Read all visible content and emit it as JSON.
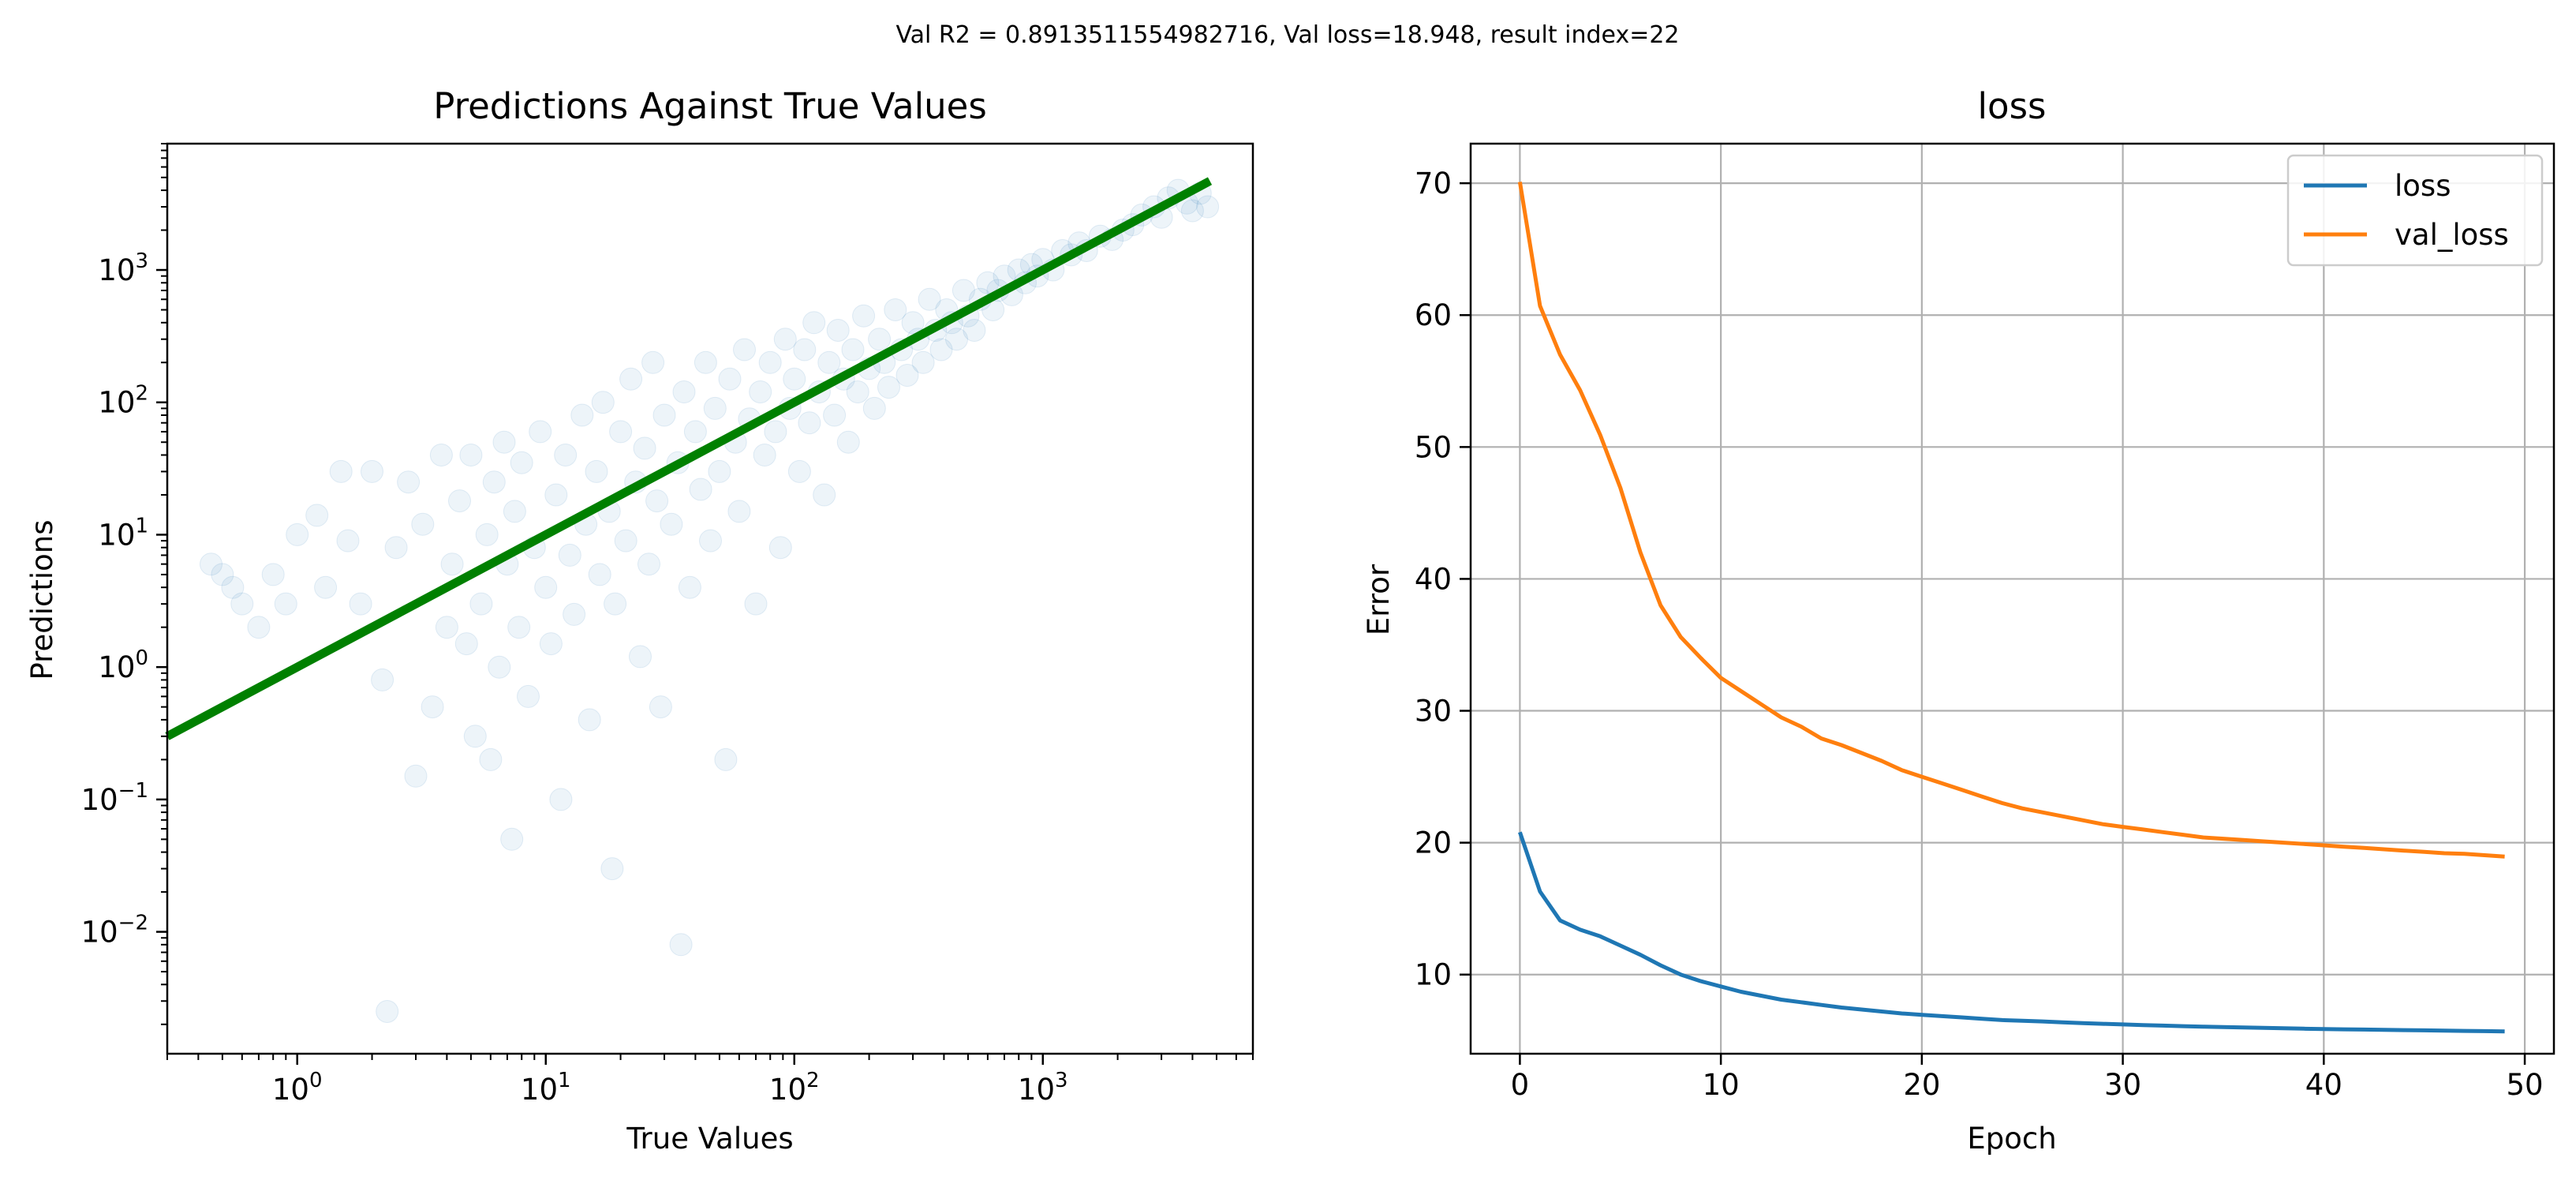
{
  "suptitle": "Val R2 = 0.8913511554982716, Val loss=18.948, result index=22",
  "colors": {
    "scatter": "#1f77b4",
    "identity_line": "#008000",
    "loss": "#1f77b4",
    "val_loss": "#ff7f0e",
    "grid": "#b0b0b0"
  },
  "chart_data": [
    {
      "type": "scatter",
      "title": "Predictions Against True Values",
      "xlabel": "True Values",
      "ylabel": "Predictions",
      "xscale": "log",
      "yscale": "log",
      "xlim": [
        0.3,
        7000
      ],
      "ylim": [
        0.0012,
        9000
      ],
      "xticks": [
        1,
        10,
        100,
        1000
      ],
      "xtick_labels": [
        {
          "base": "10",
          "exp": "0"
        },
        {
          "base": "10",
          "exp": "1"
        },
        {
          "base": "10",
          "exp": "2"
        },
        {
          "base": "10",
          "exp": "3"
        }
      ],
      "yticks": [
        0.01,
        0.1,
        1,
        10,
        100,
        1000
      ],
      "ytick_labels": [
        {
          "base": "10",
          "exp": "−2"
        },
        {
          "base": "10",
          "exp": "−1"
        },
        {
          "base": "10",
          "exp": "0"
        },
        {
          "base": "10",
          "exp": "1"
        },
        {
          "base": "10",
          "exp": "2"
        },
        {
          "base": "10",
          "exp": "3"
        }
      ],
      "identity_line": {
        "x": [
          0.3,
          4700
        ],
        "y": [
          0.3,
          4700
        ]
      },
      "points": [
        [
          0.45,
          6
        ],
        [
          0.5,
          5
        ],
        [
          0.55,
          4
        ],
        [
          0.6,
          3
        ],
        [
          0.7,
          2
        ],
        [
          0.8,
          5
        ],
        [
          0.9,
          3
        ],
        [
          1.0,
          10
        ],
        [
          1.2,
          14
        ],
        [
          1.3,
          4
        ],
        [
          1.5,
          30
        ],
        [
          1.6,
          9
        ],
        [
          1.8,
          3
        ],
        [
          2.0,
          30
        ],
        [
          2.2,
          0.8
        ],
        [
          2.3,
          0.0025
        ],
        [
          2.5,
          8
        ],
        [
          2.8,
          25
        ],
        [
          3.0,
          0.15
        ],
        [
          3.2,
          12
        ],
        [
          3.5,
          0.5
        ],
        [
          3.8,
          40
        ],
        [
          4.0,
          2
        ],
        [
          4.2,
          6
        ],
        [
          4.5,
          18
        ],
        [
          4.8,
          1.5
        ],
        [
          5.0,
          40
        ],
        [
          5.2,
          0.3
        ],
        [
          5.5,
          3
        ],
        [
          5.8,
          10
        ],
        [
          6.0,
          0.2
        ],
        [
          6.2,
          25
        ],
        [
          6.5,
          1
        ],
        [
          6.8,
          50
        ],
        [
          7.0,
          6
        ],
        [
          7.3,
          0.05
        ],
        [
          7.5,
          15
        ],
        [
          7.8,
          2
        ],
        [
          8.0,
          35
        ],
        [
          8.5,
          0.6
        ],
        [
          9.0,
          8
        ],
        [
          9.5,
          60
        ],
        [
          10,
          4
        ],
        [
          10.5,
          1.5
        ],
        [
          11,
          20
        ],
        [
          11.5,
          0.1
        ],
        [
          12,
          40
        ],
        [
          12.5,
          7
        ],
        [
          13,
          2.5
        ],
        [
          14,
          80
        ],
        [
          14.5,
          12
        ],
        [
          15,
          0.4
        ],
        [
          16,
          30
        ],
        [
          16.5,
          5
        ],
        [
          17,
          100
        ],
        [
          18,
          15
        ],
        [
          18.5,
          0.03
        ],
        [
          19,
          3
        ],
        [
          20,
          60
        ],
        [
          21,
          9
        ],
        [
          22,
          150
        ],
        [
          23,
          25
        ],
        [
          24,
          1.2
        ],
        [
          25,
          45
        ],
        [
          26,
          6
        ],
        [
          27,
          200
        ],
        [
          28,
          18
        ],
        [
          29,
          0.5
        ],
        [
          30,
          80
        ],
        [
          32,
          12
        ],
        [
          34,
          35
        ],
        [
          35,
          0.008
        ],
        [
          36,
          120
        ],
        [
          38,
          4
        ],
        [
          40,
          60
        ],
        [
          42,
          22
        ],
        [
          44,
          200
        ],
        [
          46,
          9
        ],
        [
          48,
          90
        ],
        [
          50,
          30
        ],
        [
          53,
          0.2
        ],
        [
          55,
          150
        ],
        [
          58,
          50
        ],
        [
          60,
          15
        ],
        [
          63,
          250
        ],
        [
          66,
          75
        ],
        [
          70,
          3
        ],
        [
          73,
          120
        ],
        [
          76,
          40
        ],
        [
          80,
          200
        ],
        [
          84,
          60
        ],
        [
          88,
          8
        ],
        [
          92,
          300
        ],
        [
          96,
          90
        ],
        [
          100,
          150
        ],
        [
          105,
          30
        ],
        [
          110,
          250
        ],
        [
          115,
          70
        ],
        [
          120,
          400
        ],
        [
          126,
          120
        ],
        [
          132,
          20
        ],
        [
          138,
          200
        ],
        [
          145,
          80
        ],
        [
          150,
          350
        ],
        [
          158,
          150
        ],
        [
          165,
          50
        ],
        [
          172,
          250
        ],
        [
          180,
          120
        ],
        [
          190,
          450
        ],
        [
          200,
          180
        ],
        [
          210,
          90
        ],
        [
          220,
          300
        ],
        [
          230,
          200
        ],
        [
          240,
          130
        ],
        [
          255,
          500
        ],
        [
          270,
          250
        ],
        [
          285,
          160
        ],
        [
          300,
          400
        ],
        [
          315,
          300
        ],
        [
          330,
          200
        ],
        [
          350,
          600
        ],
        [
          370,
          350
        ],
        [
          390,
          250
        ],
        [
          410,
          500
        ],
        [
          430,
          400
        ],
        [
          450,
          300
        ],
        [
          480,
          700
        ],
        [
          500,
          450
        ],
        [
          530,
          350
        ],
        [
          560,
          600
        ],
        [
          600,
          800
        ],
        [
          630,
          500
        ],
        [
          660,
          700
        ],
        [
          700,
          900
        ],
        [
          750,
          650
        ],
        [
          800,
          1000
        ],
        [
          850,
          800
        ],
        [
          900,
          1100
        ],
        [
          950,
          900
        ],
        [
          1000,
          1200
        ],
        [
          1100,
          1000
        ],
        [
          1200,
          1400
        ],
        [
          1300,
          1300
        ],
        [
          1400,
          1600
        ],
        [
          1500,
          1400
        ],
        [
          1700,
          1800
        ],
        [
          1900,
          1700
        ],
        [
          2100,
          2000
        ],
        [
          2300,
          2200
        ],
        [
          2500,
          2600
        ],
        [
          2800,
          3000
        ],
        [
          3000,
          2500
        ],
        [
          3200,
          3500
        ],
        [
          3500,
          4000
        ],
        [
          3800,
          3200
        ],
        [
          4000,
          2800
        ],
        [
          4300,
          3800
        ],
        [
          4600,
          3000
        ]
      ],
      "point_alpha": 0.08
    },
    {
      "type": "line",
      "title": "loss",
      "xlabel": "Epoch",
      "ylabel": "Error",
      "xlim": [
        -2.45,
        51.45
      ],
      "ylim": [
        4.0,
        73.0
      ],
      "xticks": [
        0,
        10,
        20,
        30,
        40,
        50
      ],
      "yticks": [
        10,
        20,
        30,
        40,
        50,
        60,
        70
      ],
      "grid": true,
      "legend_position": "top-right",
      "x": [
        0,
        1,
        2,
        3,
        4,
        5,
        6,
        7,
        8,
        9,
        10,
        11,
        12,
        13,
        14,
        15,
        16,
        17,
        18,
        19,
        20,
        21,
        22,
        23,
        24,
        25,
        26,
        27,
        28,
        29,
        30,
        31,
        32,
        33,
        34,
        35,
        36,
        37,
        38,
        39,
        40,
        41,
        42,
        43,
        44,
        45,
        46,
        47,
        48,
        49
      ],
      "series": [
        {
          "name": "loss",
          "values": [
            20.8,
            16.3,
            14.1,
            13.4,
            12.9,
            12.2,
            11.5,
            10.7,
            10.0,
            9.5,
            9.1,
            8.7,
            8.4,
            8.1,
            7.9,
            7.7,
            7.5,
            7.35,
            7.2,
            7.05,
            6.95,
            6.85,
            6.75,
            6.65,
            6.55,
            6.5,
            6.45,
            6.38,
            6.32,
            6.27,
            6.22,
            6.17,
            6.13,
            6.09,
            6.05,
            6.02,
            5.99,
            5.96,
            5.93,
            5.9,
            5.87,
            5.85,
            5.83,
            5.81,
            5.79,
            5.77,
            5.75,
            5.73,
            5.71,
            5.69
          ]
        },
        {
          "name": "val_loss",
          "values": [
            70.1,
            60.7,
            57.0,
            54.3,
            50.9,
            46.9,
            42.0,
            38.0,
            35.6,
            34.0,
            32.5,
            31.5,
            30.5,
            29.5,
            28.8,
            27.9,
            27.4,
            26.8,
            26.2,
            25.5,
            25.0,
            24.5,
            24.0,
            23.5,
            23.0,
            22.6,
            22.3,
            22.0,
            21.7,
            21.4,
            21.2,
            21.0,
            20.8,
            20.6,
            20.4,
            20.3,
            20.2,
            20.1,
            20.0,
            19.9,
            19.8,
            19.7,
            19.6,
            19.5,
            19.4,
            19.3,
            19.2,
            19.15,
            19.05,
            18.95
          ]
        }
      ]
    }
  ]
}
